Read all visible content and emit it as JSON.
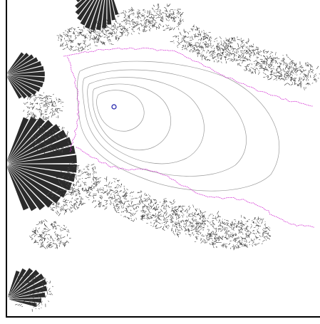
{
  "view": {
    "type": "fractal-render",
    "subject": "mandelbrot-set-detail",
    "colors": {
      "background": "#ffffff",
      "fractal": "#2b2b2b",
      "filament": "#555555",
      "boundary_highlight": "#d020d0",
      "contour": "#9a9a9a",
      "marker": "#1a1aa8",
      "frame": "#000000"
    },
    "marker": {
      "shape": "circle-outline",
      "icon": "point-marker-icon"
    },
    "axes_frame": {
      "left": true,
      "bottom": true,
      "ticks": false,
      "labels": false
    }
  }
}
